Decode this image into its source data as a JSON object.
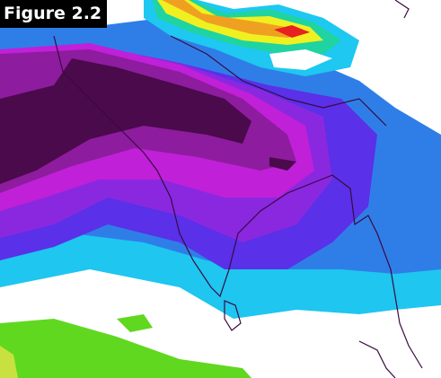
{
  "figure_label": "Figure 2.2"
}
